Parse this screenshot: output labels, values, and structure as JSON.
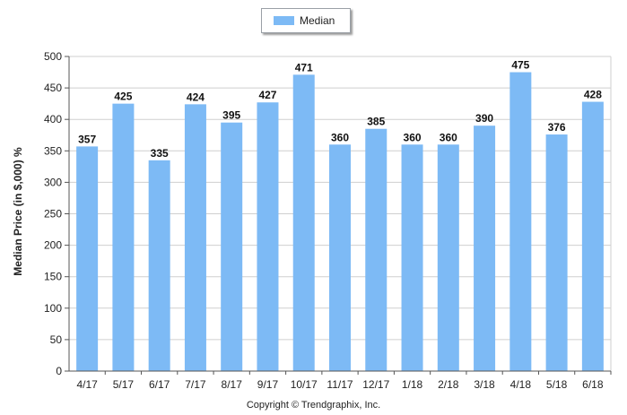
{
  "chart_data": {
    "type": "bar",
    "categories": [
      "4/17",
      "5/17",
      "6/17",
      "7/17",
      "8/17",
      "9/17",
      "10/17",
      "11/17",
      "12/17",
      "1/18",
      "2/18",
      "3/18",
      "4/18",
      "5/18",
      "6/18"
    ],
    "series": [
      {
        "name": "Median",
        "values": [
          357,
          425,
          335,
          424,
          395,
          427,
          471,
          360,
          385,
          360,
          360,
          390,
          475,
          376,
          428
        ],
        "color": "#7dbaf5"
      }
    ],
    "ylabel": "Median Price (in $,000) %",
    "xlabel": "",
    "ylim": [
      0,
      500
    ],
    "yticks": [
      0,
      50,
      100,
      150,
      200,
      250,
      300,
      350,
      400,
      450,
      500
    ],
    "grid": true,
    "legend": "top-center",
    "data_labels": true
  },
  "footer": {
    "copyright": "Copyright © Trendgraphix, Inc."
  }
}
